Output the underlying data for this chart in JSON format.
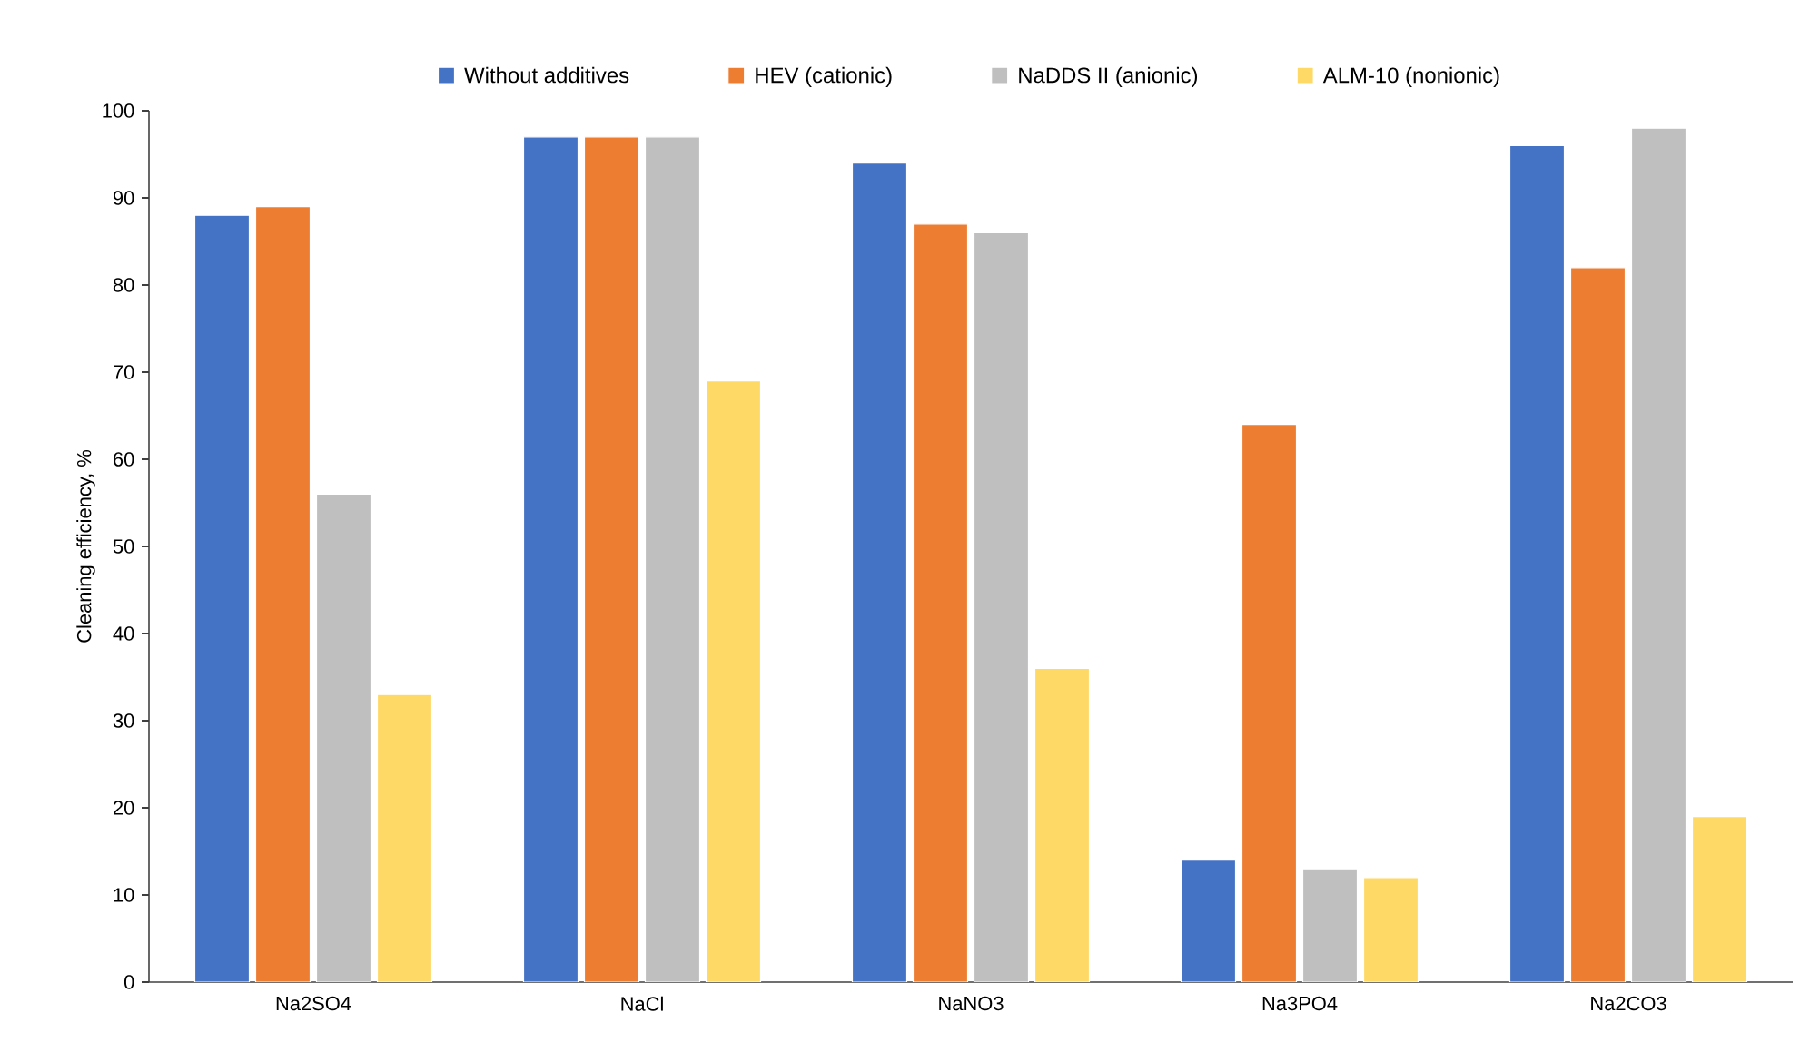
{
  "chart_data": {
    "type": "bar",
    "ylabel": "Cleaning efficiency, %",
    "categories": [
      "Na2SO4",
      "NaCl",
      "NaNO3",
      "Na3PO4",
      "Na2CO3"
    ],
    "series": [
      {
        "name": "Without additives",
        "color": "#4472c4",
        "values": [
          88,
          97,
          94,
          14,
          96
        ]
      },
      {
        "name": "HEV (cationic)",
        "color": "#ed7d31",
        "values": [
          89,
          97,
          87,
          64,
          82
        ]
      },
      {
        "name": "NaDDS II (anionic)",
        "color": "#bfbfbf",
        "values": [
          56,
          97,
          86,
          13,
          98
        ]
      },
      {
        "name": "ALM-10  (nonionic)",
        "color": "#ffd966",
        "values": [
          33,
          69,
          36,
          12,
          19
        ]
      }
    ],
    "ylim": [
      0,
      100
    ],
    "yticks": [
      0,
      10,
      20,
      30,
      40,
      50,
      60,
      70,
      80,
      90,
      100
    ],
    "grid": false,
    "legend": "top"
  }
}
